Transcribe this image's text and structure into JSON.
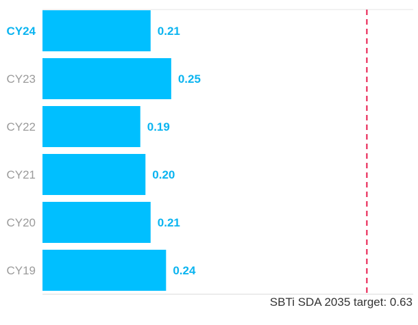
{
  "chart_data": {
    "type": "bar",
    "orientation": "horizontal",
    "categories": [
      "CY24",
      "CY23",
      "CY22",
      "CY21",
      "CY20",
      "CY19"
    ],
    "values": [
      0.21,
      0.25,
      0.19,
      0.2,
      0.21,
      0.24
    ],
    "value_labels": [
      "0.21",
      "0.25",
      "0.19",
      "0.20",
      "0.21",
      "0.24"
    ],
    "highlight_category": "CY24",
    "xlim": [
      0,
      0.72
    ],
    "target": {
      "value": 0.63,
      "label": "SBTi SDA 2035 target: 0.63"
    }
  },
  "colors": {
    "bar": "#00bfff",
    "value_label": "#0ab4f0",
    "category_label": "#9a9a9a",
    "highlight_label": "#0ab4f0",
    "target_line": "#e8194b",
    "axis_line": "#d9d9d9"
  }
}
